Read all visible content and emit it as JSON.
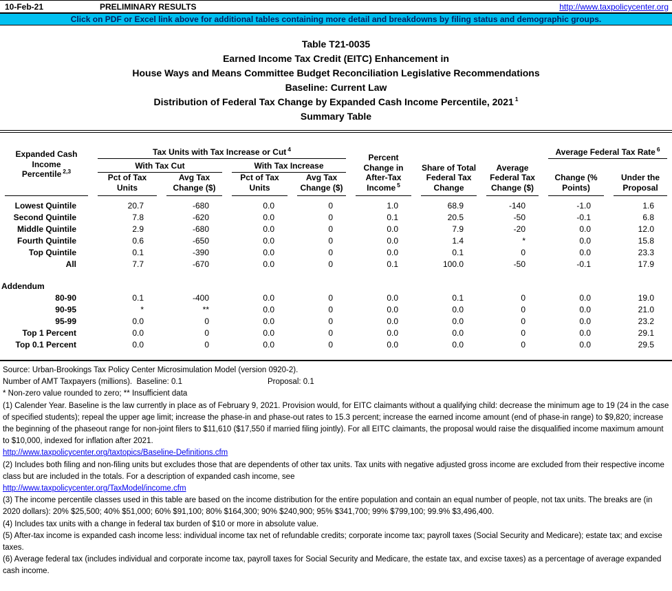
{
  "page": {
    "date": "10-Feb-21",
    "preliminary": "PRELIMINARY RESULTS",
    "site_url": "http://www.taxpolicycenter.org",
    "banner": "Click on PDF or Excel link above for additional tables containing more detail and breakdowns by filing status and demographic groups.",
    "colors": {
      "banner_bg": "#00c0f0",
      "banner_text": "#002060",
      "link_blue": "#0000ee"
    }
  },
  "title": {
    "line1": "Table T21-0035",
    "line2": "Earned Income Tax Credit (EITC) Enhancement in",
    "line3": "House Ways and Means Committee Budget Reconciliation Legislative Recommendations",
    "line4": "Baseline: Current Law",
    "line5": "Distribution of Federal Tax Change by Expanded Cash Income Percentile, 2021",
    "line5_sup": "1",
    "line6": "Summary Table"
  },
  "table": {
    "stub_header_lines": [
      "Expanded Cash Income",
      "Percentile"
    ],
    "stub_header_sup": "2,3",
    "group1": "Tax Units with Tax Increase or Cut",
    "group1_sup": "4",
    "subgroup_cut": "With Tax Cut",
    "subgroup_increase": "With Tax Increase",
    "col_pct_lines": [
      "Pct of Tax",
      "Units"
    ],
    "col_avg_lines": [
      "Avg Tax",
      "Change ($)"
    ],
    "col_pct_change_lines": [
      "Percent",
      "Change in",
      "After-Tax",
      "Income"
    ],
    "col_pct_change_sup": "5",
    "col_share_lines": [
      "Share of Total",
      "Federal Tax",
      "Change"
    ],
    "col_avg_fed_lines": [
      "Average",
      "Federal Tax",
      "Change ($)"
    ],
    "group2": "Average Federal Tax Rate",
    "group2_sup": "6",
    "col_rate_change_lines": [
      "Change (%",
      "Points)"
    ],
    "col_rate_under_lines": [
      "Under the",
      "Proposal"
    ],
    "rows": [
      {
        "label": "Lowest Quintile",
        "values": [
          "20.7",
          "-680",
          "0.0",
          "0",
          "1.0",
          "68.9",
          "-140",
          "-1.0",
          "1.6"
        ]
      },
      {
        "label": "Second Quintile",
        "values": [
          "7.8",
          "-620",
          "0.0",
          "0",
          "0.1",
          "20.5",
          "-50",
          "-0.1",
          "6.8"
        ]
      },
      {
        "label": "Middle Quintile",
        "values": [
          "2.9",
          "-680",
          "0.0",
          "0",
          "0.0",
          "7.9",
          "-20",
          "0.0",
          "12.0"
        ]
      },
      {
        "label": "Fourth Quintile",
        "values": [
          "0.6",
          "-650",
          "0.0",
          "0",
          "0.0",
          "1.4",
          "*",
          "0.0",
          "15.8"
        ]
      },
      {
        "label": "Top Quintile",
        "values": [
          "0.1",
          "-390",
          "0.0",
          "0",
          "0.0",
          "0.1",
          "0",
          "0.0",
          "23.3"
        ]
      },
      {
        "label": "All",
        "values": [
          "7.7",
          "-670",
          "0.0",
          "0",
          "0.1",
          "100.0",
          "-50",
          "-0.1",
          "17.9"
        ]
      }
    ],
    "addendum_label": "Addendum",
    "addendum_rows": [
      {
        "label": "80-90",
        "values": [
          "0.1",
          "-400",
          "0.0",
          "0",
          "0.0",
          "0.1",
          "0",
          "0.0",
          "19.0"
        ]
      },
      {
        "label": "90-95",
        "values": [
          "*",
          "**",
          "0.0",
          "0",
          "0.0",
          "0.0",
          "0",
          "0.0",
          "21.0"
        ]
      },
      {
        "label": "95-99",
        "values": [
          "0.0",
          "0",
          "0.0",
          "0",
          "0.0",
          "0.0",
          "0",
          "0.0",
          "23.2"
        ]
      },
      {
        "label": "Top 1 Percent",
        "values": [
          "0.0",
          "0",
          "0.0",
          "0",
          "0.0",
          "0.0",
          "0",
          "0.0",
          "29.1"
        ]
      },
      {
        "label": "Top 0.1 Percent",
        "values": [
          "0.0",
          "0",
          "0.0",
          "0",
          "0.0",
          "0.0",
          "0",
          "0.0",
          "29.5"
        ]
      }
    ]
  },
  "footnotes": {
    "items": [
      {
        "type": "text",
        "text": "Source: Urban-Brookings Tax Policy Center Microsimulation Model (version 0920-2)."
      },
      {
        "type": "amt",
        "label": "Number of AMT Taxpayers (millions).  Baseline: 0.1",
        "proposal": "Proposal: 0.1"
      },
      {
        "type": "text",
        "text": "* Non-zero value rounded to zero; ** Insufficient data"
      },
      {
        "type": "text",
        "text": "(1) Calender Year. Baseline is the law currently in place as of February 9, 2021. Provision would, for EITC claimants without a qualifying child: decrease the minimum age to 19 (24 in the case of specified students); repeal the upper age limit; increase the phase-in and phase-out rates to 15.3 percent; increase the earned income amount (end of phase-in range) to $9,820; increase the beginning of the phaseout range for non-joint filers to $11,610 ($17,550 if married filing jointly). For all EITC claimants, the proposal would raise the disqualified income maximum amount to $10,000, indexed for inflation after 2021."
      },
      {
        "type": "link",
        "text": "http://www.taxpolicycenter.org/taxtopics/Baseline-Definitions.cfm"
      },
      {
        "type": "text",
        "text": "(2) Includes both filing and non-filing units but excludes those that are dependents of other tax units. Tax units with negative adjusted gross income are excluded from their respective income class but are included in the totals. For a description of expanded cash income, see"
      },
      {
        "type": "link",
        "text": "http://www.taxpolicycenter.org/TaxModel/income.cfm"
      },
      {
        "type": "text",
        "text": "(3) The income percentile classes used in this table are based on the income distribution for the entire population and contain an equal number of people, not tax units. The breaks are (in 2020 dollars): 20% $25,500; 40% $51,000; 60% $91,100; 80% $164,300; 90% $240,900; 95% $341,700; 99% $799,100; 99.9% $3,496,400."
      },
      {
        "type": "text",
        "text": "(4) Includes tax units with a change in federal tax burden of $10 or more in absolute value."
      },
      {
        "type": "text",
        "text": "(5) After-tax income is expanded cash income less: individual income tax net of refundable credits; corporate income tax; payroll taxes (Social Security and Medicare); estate tax; and excise taxes."
      },
      {
        "type": "text",
        "text": "(6) Average federal tax (includes individual and corporate income tax, payroll taxes for Social Security and Medicare, the estate tax, and excise taxes) as a percentage of average expanded cash income."
      }
    ]
  }
}
